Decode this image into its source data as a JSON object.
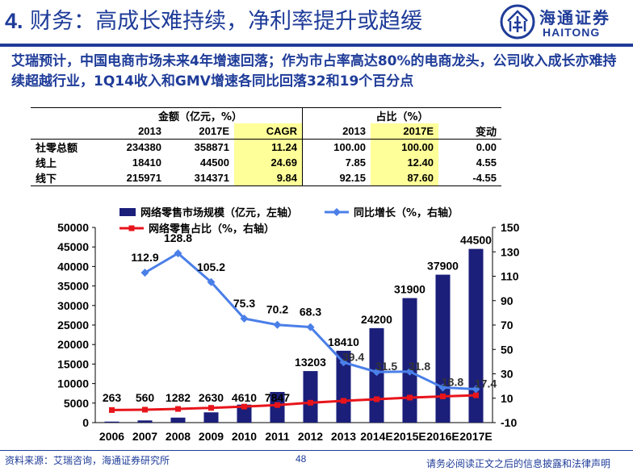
{
  "header": {
    "number": "4.",
    "title": "财务：高成长难持续，净利率提升或趋缓",
    "logo_cn": "海通证券",
    "logo_en": "HAITONG"
  },
  "intro": "艾瑞预计，中国电商市场未来4年增速回落；作为市占率高达80%的电商龙头，公司收入成长亦难持续超越行业，1Q14收入和GMV增速各同比回落32和19个百分点",
  "table": {
    "group1": "金额（亿元，%）",
    "group2": "占比（%）",
    "headers": [
      "2013",
      "2017E",
      "CAGR",
      "2013",
      "2017E",
      "变动"
    ],
    "rows": [
      {
        "label": "社零总额",
        "values": [
          "234380",
          "358871",
          "11.24",
          "100.00",
          "100.00",
          "0.00"
        ]
      },
      {
        "label": "线上",
        "values": [
          "18410",
          "44500",
          "24.69",
          "7.85",
          "12.40",
          "4.55"
        ]
      },
      {
        "label": "线下",
        "values": [
          "215971",
          "314371",
          "9.84",
          "92.15",
          "87.60",
          "-4.55"
        ]
      }
    ]
  },
  "chart_data": {
    "type": "bar",
    "categories": [
      "2006",
      "2007",
      "2008",
      "2009",
      "2010",
      "2011",
      "2012",
      "2013",
      "2014E",
      "2015E",
      "2016E",
      "2017E"
    ],
    "series": [
      {
        "name": "网络零售市场规模（亿元，左轴）",
        "axis": "left",
        "kind": "bar",
        "color": "#1b1f7a",
        "values": [
          263,
          560,
          1282,
          2630,
          4610,
          7847,
          13203,
          18410,
          24200,
          31900,
          37900,
          44500
        ]
      },
      {
        "name": "同比增长（%，右轴）",
        "axis": "right",
        "kind": "line",
        "color": "#4a7fe8",
        "values": [
          null,
          112.9,
          128.8,
          105.2,
          75.3,
          70.2,
          68.3,
          39.4,
          31.5,
          31.8,
          18.8,
          17.4
        ]
      },
      {
        "name": "网络零售占比（%，右轴）",
        "axis": "right",
        "kind": "line",
        "color": "#e8141b",
        "values": [
          0.3,
          0.6,
          1.2,
          2.1,
          3.1,
          4.4,
          6.3,
          7.85,
          9.2,
          10.5,
          11.5,
          12.4
        ]
      }
    ],
    "left_axis": {
      "min": 0,
      "max": 50000,
      "ticks": [
        0,
        5000,
        10000,
        15000,
        20000,
        25000,
        30000,
        35000,
        40000,
        45000,
        50000
      ]
    },
    "right_axis": {
      "min": -10,
      "max": 150,
      "ticks": [
        -10,
        10,
        30,
        50,
        70,
        90,
        110,
        130,
        150
      ]
    },
    "legend_placement": "top"
  },
  "footer": {
    "source": "资料来源：艾瑞咨询，海通证券研究所",
    "page": "48",
    "disclaimer": "请务必阅读正文之后的信息披露和法律声明"
  }
}
